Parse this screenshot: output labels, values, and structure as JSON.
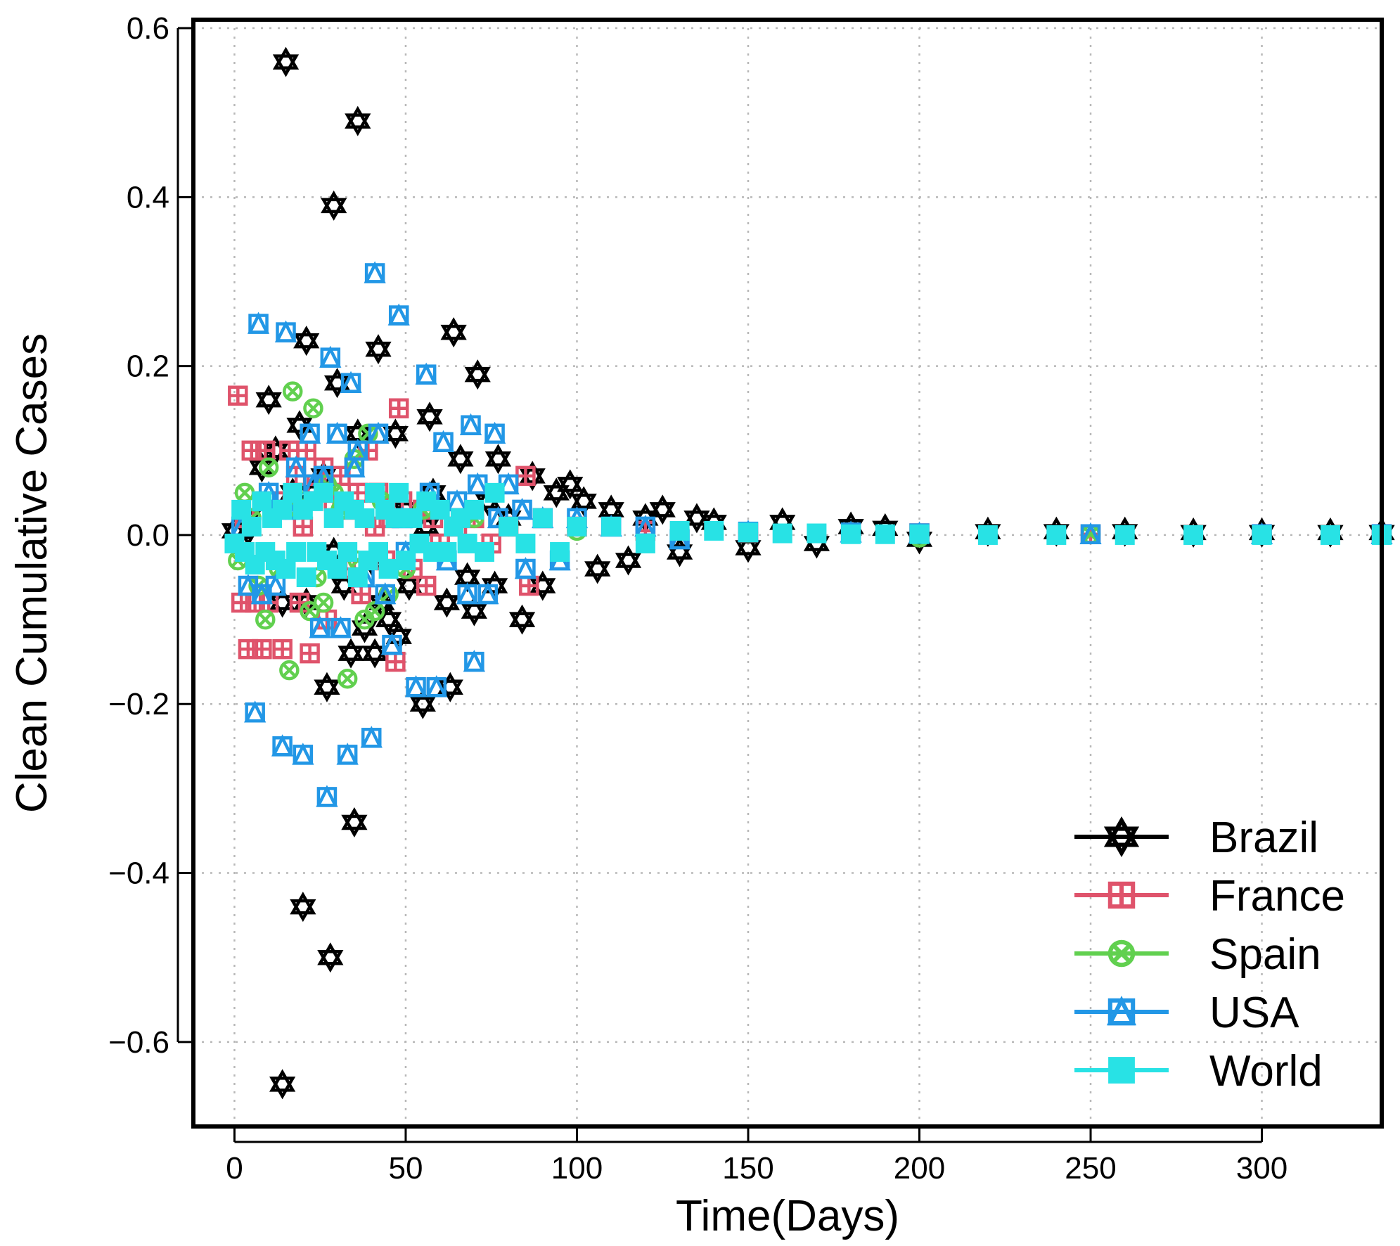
{
  "chart_data": {
    "type": "scatter",
    "title": "",
    "xlabel": "Time(Days)",
    "ylabel": "Clean Cumulative Cases",
    "xlim": [
      -12,
      335
    ],
    "ylim": [
      -0.7,
      0.61
    ],
    "xticks": [
      0,
      50,
      100,
      150,
      200,
      250,
      300
    ],
    "xtick_labels": [
      "0",
      "50",
      "100",
      "150",
      "200",
      "250",
      "300"
    ],
    "yticks": [
      -0.6,
      -0.4,
      -0.2,
      0.0,
      0.2,
      0.4,
      0.6
    ],
    "ytick_labels": [
      "−0.6",
      "−0.4",
      "−0.2",
      "0.0",
      "0.2",
      "0.4",
      "0.6"
    ],
    "grid": true,
    "legend_position": "bottom-right",
    "series": [
      {
        "name": "Brazil",
        "color": "#000000",
        "marker": "hexagram",
        "x": [
          0,
          2,
          4,
          8,
          10,
          12,
          14,
          14,
          15,
          17,
          19,
          20,
          21,
          21,
          23,
          26,
          27,
          28,
          29,
          29,
          30,
          32,
          34,
          35,
          36,
          36,
          38,
          40,
          41,
          42,
          43,
          45,
          47,
          48,
          50,
          51,
          55,
          56,
          57,
          58,
          62,
          63,
          64,
          66,
          68,
          70,
          71,
          74,
          76,
          77,
          80,
          84,
          87,
          90,
          94,
          98,
          102,
          106,
          110,
          115,
          120,
          125,
          130,
          135,
          140,
          150,
          160,
          170,
          180,
          190,
          200,
          220,
          240,
          260,
          280,
          300,
          320,
          335
        ],
        "y": [
          0.005,
          -0.01,
          0.02,
          0.08,
          0.16,
          0.1,
          -0.65,
          -0.08,
          0.56,
          0.05,
          0.13,
          -0.44,
          0.23,
          -0.08,
          0.05,
          0.07,
          -0.18,
          -0.5,
          0.39,
          -0.02,
          0.18,
          -0.06,
          -0.14,
          -0.34,
          0.49,
          0.12,
          -0.11,
          -0.03,
          -0.14,
          0.22,
          -0.08,
          -0.1,
          0.12,
          -0.12,
          0.03,
          -0.06,
          -0.2,
          0.01,
          0.14,
          0.05,
          -0.08,
          -0.18,
          0.24,
          0.09,
          -0.05,
          -0.09,
          0.19,
          0.04,
          -0.06,
          0.09,
          0.02,
          -0.1,
          0.07,
          -0.06,
          0.05,
          0.06,
          0.04,
          -0.04,
          0.03,
          -0.03,
          0.02,
          0.03,
          -0.02,
          0.02,
          0.015,
          -0.015,
          0.015,
          -0.01,
          0.01,
          0.008,
          -0.005,
          0.004,
          0.004,
          0.004,
          0.003,
          0.003,
          0.003,
          0.003
        ]
      },
      {
        "name": "France",
        "color": "#DF536B",
        "marker": "boxplus",
        "x": [
          1,
          2,
          3,
          4,
          5,
          6,
          8,
          9,
          10,
          12,
          14,
          16,
          18,
          19,
          20,
          21,
          22,
          24,
          26,
          27,
          29,
          31,
          33,
          35,
          36,
          37,
          39,
          41,
          42,
          44,
          45,
          47,
          48,
          49,
          52,
          55,
          56,
          58,
          60,
          65,
          70,
          75,
          80,
          85,
          86,
          90,
          100,
          120,
          150,
          200,
          250,
          300,
          335
        ],
        "y": [
          0.165,
          -0.08,
          0.02,
          -0.135,
          0.1,
          -0.08,
          -0.135,
          0.1,
          -0.08,
          0.04,
          -0.135,
          0.1,
          0.07,
          -0.08,
          0.01,
          0.1,
          -0.14,
          0.06,
          0.08,
          -0.1,
          0.04,
          0.07,
          0.03,
          -0.04,
          0.05,
          -0.07,
          0.1,
          0.01,
          0.05,
          -0.03,
          0.02,
          -0.15,
          0.15,
          0.04,
          -0.04,
          0.03,
          -0.06,
          0.02,
          -0.01,
          0.01,
          0.02,
          -0.01,
          0.01,
          0.07,
          -0.06,
          0.02,
          0.01,
          0.005,
          0.003,
          0.002,
          0.001,
          0.001,
          0.001
        ]
      },
      {
        "name": "Spain",
        "color": "#61D04F",
        "marker": "circle-x",
        "x": [
          1,
          3,
          5,
          7,
          9,
          10,
          13,
          15,
          16,
          17,
          20,
          22,
          23,
          24,
          26,
          27,
          29,
          31,
          33,
          35,
          36,
          38,
          39,
          41,
          43,
          45,
          48,
          50,
          55,
          60,
          70,
          80,
          100,
          150,
          200,
          250,
          300,
          335
        ],
        "y": [
          -0.03,
          0.05,
          0.02,
          -0.06,
          -0.1,
          0.08,
          -0.04,
          0.03,
          -0.16,
          0.17,
          0.04,
          -0.09,
          0.15,
          -0.05,
          -0.08,
          0.06,
          0.05,
          0.03,
          -0.17,
          0.09,
          -0.03,
          -0.1,
          0.12,
          -0.09,
          0.04,
          -0.07,
          0.02,
          -0.04,
          0.03,
          -0.02,
          0.02,
          0.01,
          0.005,
          0.003,
          -0.003,
          0.001,
          0.001,
          0.001
        ]
      },
      {
        "name": "USA",
        "color": "#2297E6",
        "marker": "triangle-square",
        "x": [
          2,
          4,
          6,
          7,
          8,
          9,
          10,
          12,
          14,
          15,
          16,
          18,
          20,
          22,
          23,
          25,
          26,
          27,
          28,
          30,
          31,
          33,
          34,
          35,
          36,
          38,
          40,
          41,
          42,
          44,
          46,
          48,
          49,
          50,
          53,
          56,
          57,
          59,
          61,
          62,
          65,
          68,
          69,
          70,
          71,
          74,
          76,
          77,
          80,
          84,
          85,
          90,
          95,
          100,
          110,
          120,
          130,
          150,
          180,
          200,
          250,
          300,
          335
        ],
        "y": [
          0.01,
          -0.06,
          -0.21,
          0.25,
          -0.07,
          0.04,
          0.05,
          -0.06,
          -0.25,
          0.24,
          0.03,
          0.08,
          -0.26,
          0.12,
          0.06,
          -0.11,
          0.07,
          -0.31,
          0.21,
          0.12,
          -0.11,
          -0.26,
          0.18,
          0.08,
          0.1,
          -0.05,
          -0.24,
          0.31,
          0.12,
          -0.07,
          -0.13,
          0.26,
          0.02,
          -0.02,
          -0.18,
          0.19,
          0.05,
          -0.18,
          0.11,
          -0.03,
          0.04,
          -0.07,
          0.13,
          -0.15,
          0.06,
          -0.07,
          0.12,
          0.02,
          0.06,
          0.03,
          -0.04,
          0.02,
          -0.03,
          0.02,
          0.01,
          0.01,
          -0.005,
          0.004,
          0.003,
          0.002,
          0.001,
          0.001,
          0.001
        ]
      },
      {
        "name": "World",
        "color": "#28E2E5",
        "marker": "filled-square",
        "x": [
          0,
          2,
          3,
          5,
          6,
          8,
          9,
          11,
          12,
          14,
          15,
          17,
          18,
          20,
          21,
          23,
          24,
          26,
          27,
          29,
          30,
          32,
          33,
          35,
          36,
          38,
          39,
          41,
          42,
          44,
          45,
          47,
          48,
          50,
          52,
          54,
          56,
          58,
          60,
          62,
          64,
          66,
          68,
          70,
          73,
          76,
          80,
          85,
          90,
          95,
          100,
          110,
          120,
          130,
          140,
          150,
          160,
          170,
          180,
          190,
          200,
          220,
          240,
          260,
          280,
          300,
          320,
          335
        ],
        "y": [
          -0.01,
          0.03,
          -0.02,
          0.01,
          -0.035,
          0.04,
          -0.02,
          0.02,
          -0.03,
          0.03,
          -0.04,
          0.05,
          -0.02,
          0.03,
          -0.05,
          0.04,
          -0.02,
          0.05,
          -0.03,
          0.02,
          -0.04,
          0.04,
          -0.02,
          0.03,
          -0.05,
          0.02,
          -0.03,
          0.05,
          -0.02,
          0.03,
          -0.04,
          0.02,
          0.05,
          -0.03,
          0.02,
          -0.01,
          0.04,
          -0.02,
          0.03,
          -0.02,
          0.01,
          0.02,
          -0.01,
          0.03,
          -0.02,
          0.05,
          0.01,
          -0.01,
          0.02,
          -0.02,
          0.01,
          0.01,
          -0.01,
          0.005,
          0.005,
          0.003,
          0.002,
          0.002,
          0.001,
          0.001,
          0.001,
          0.0,
          0.0,
          0.0,
          0.0,
          0.0,
          0.0,
          0.0
        ]
      }
    ]
  }
}
